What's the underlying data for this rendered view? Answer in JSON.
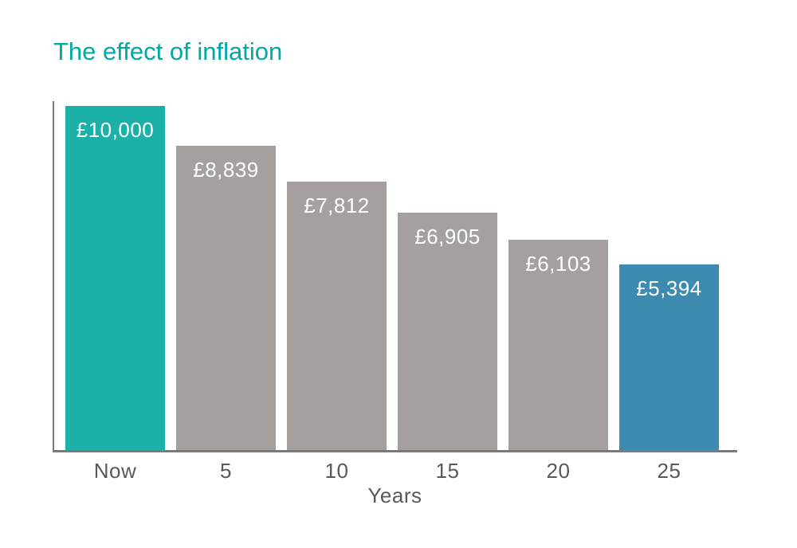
{
  "chart_data": {
    "type": "bar",
    "title": "The effect of inflation",
    "xlabel": "Years",
    "ylabel": "",
    "categories": [
      "Now",
      "5",
      "10",
      "15",
      "20",
      "25"
    ],
    "values": [
      10000,
      8839,
      7812,
      6905,
      6103,
      5394
    ],
    "labels": [
      "£10,000",
      "£8,839",
      "£7,812",
      "£6,905",
      "£6,103",
      "£5,394"
    ],
    "bar_colors": [
      "#1BB1A9",
      "#A5A09E",
      "#A5A09E",
      "#A5A09E",
      "#A5A09E",
      "#3E8BB1"
    ],
    "ylim": [
      0,
      10000
    ],
    "grid": false,
    "legend": null,
    "value_labels_inside_bars": true
  },
  "colors": {
    "title": "#00A9A6",
    "axis_line": "#797A7D",
    "tick_label": "#58595B",
    "bar_value_label": "#FFFFFF",
    "background": "#FFFFFF"
  }
}
